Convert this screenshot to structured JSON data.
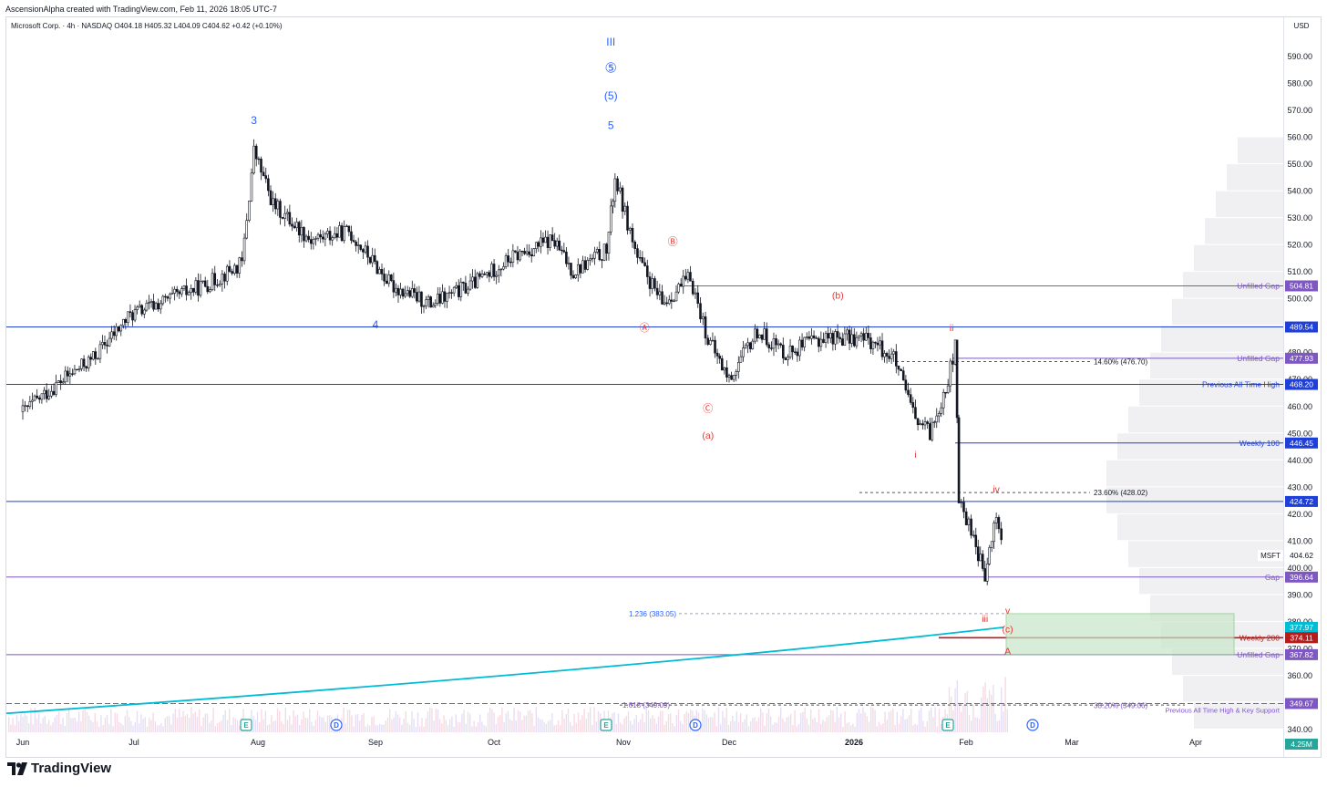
{
  "header": {
    "credit": "AscensionAlpha created with TradingView.com, Feb 11, 2026 18:05 UTC-7",
    "symbol_line": "Microsoft Corp. · 4h · NASDAQ  O404.18  H405.32  L404.09  C404.62  +0.42 (+0.10%)",
    "currency": "USD",
    "brand": "TradingView"
  },
  "chart_data": {
    "type": "candlestick",
    "symbol": "MSFT",
    "timeframe": "4h",
    "ylim": [
      340,
      598
    ],
    "y_ticks": [
      340,
      350,
      360,
      370,
      380,
      390,
      400,
      410,
      420,
      430,
      440,
      450,
      460,
      470,
      480,
      490,
      500,
      510,
      520,
      530,
      540,
      550,
      560,
      570,
      580,
      590
    ],
    "x_ticks": [
      "Jun",
      "Jul",
      "Aug",
      "Sep",
      "Oct",
      "Nov",
      "Dec",
      "2026",
      "Feb",
      "Mar",
      "Apr"
    ],
    "last_price": 404.62,
    "last_price_label": "MSFT",
    "ohlc_last": {
      "open": 404.18,
      "high": 405.32,
      "low": 404.09,
      "close": 404.62,
      "change": "+0.42 (+0.10%)"
    },
    "price_path": [
      [
        "2025-06-01",
        458
      ],
      [
        "2025-06-10",
        468
      ],
      [
        "2025-06-20",
        478
      ],
      [
        "2025-06-30",
        494
      ],
      [
        "2025-07-10",
        500
      ],
      [
        "2025-07-20",
        506
      ],
      [
        "2025-07-28",
        513
      ],
      [
        "2025-07-31",
        555
      ],
      [
        "2025-08-05",
        535
      ],
      [
        "2025-08-15",
        522
      ],
      [
        "2025-08-25",
        525
      ],
      [
        "2025-09-05",
        505
      ],
      [
        "2025-09-15",
        498
      ],
      [
        "2025-09-25",
        505
      ],
      [
        "2025-10-05",
        515
      ],
      [
        "2025-10-15",
        522
      ],
      [
        "2025-10-20",
        510
      ],
      [
        "2025-10-28",
        518
      ],
      [
        "2025-10-30",
        545
      ],
      [
        "2025-11-05",
        515
      ],
      [
        "2025-11-12",
        498
      ],
      [
        "2025-11-20",
        508
      ],
      [
        "2025-11-25",
        485
      ],
      [
        "2025-12-01",
        470
      ],
      [
        "2025-12-08",
        488
      ],
      [
        "2025-12-15",
        480
      ],
      [
        "2025-12-25",
        486
      ],
      [
        "2026-01-05",
        485
      ],
      [
        "2026-01-12",
        478
      ],
      [
        "2026-01-18",
        455
      ],
      [
        "2026-01-22",
        450
      ],
      [
        "2026-01-27",
        470
      ],
      [
        "2026-01-29",
        482
      ],
      [
        "2026-01-30",
        425
      ],
      [
        "2026-02-03",
        412
      ],
      [
        "2026-02-06",
        396
      ],
      [
        "2026-02-09",
        420
      ],
      [
        "2026-02-11",
        404.62
      ]
    ],
    "moving_average": {
      "name": "Weekly 200",
      "from": [
        "2025-06-01",
        346
      ],
      "to": [
        "2026-02-11",
        377.97
      ]
    },
    "horizontal_levels": [
      {
        "label": "Unfilled Gap",
        "value": 504.81,
        "color": "#7e57c2"
      },
      {
        "label": "",
        "value": 489.54,
        "color": "#1e3fd8"
      },
      {
        "label": "Unfilled Gap",
        "value": 477.93,
        "color": "#7e57c2"
      },
      {
        "label": "Previous All Time High",
        "value": 468.2,
        "color": "#1e3fd8"
      },
      {
        "label": "Weekly 100",
        "value": 446.45,
        "color": "#1e3fd8"
      },
      {
        "label": "",
        "value": 424.72,
        "color": "#1e3fd8"
      },
      {
        "label": "Gap",
        "value": 396.64,
        "color": "#7e57c2"
      },
      {
        "label": "",
        "value": 377.97,
        "color": "#00bcd4"
      },
      {
        "label": "Weekly 200",
        "value": 374.11,
        "color": "#b71c1c"
      },
      {
        "label": "Unfilled Gap",
        "value": 367.82,
        "color": "#7e57c2"
      },
      {
        "label": "Previous All Time High & Key Support",
        "value": 349.67,
        "color": "#7e57c2"
      }
    ],
    "price_axis_labels": [
      {
        "text": "504.81",
        "color": "#7e57c2"
      },
      {
        "text": "489.54",
        "color": "#1e3fd8"
      },
      {
        "text": "477.93",
        "color": "#7e57c2"
      },
      {
        "text": "468.20",
        "color": "#1e3fd8"
      },
      {
        "text": "446.45",
        "color": "#1e3fd8"
      },
      {
        "text": "424.72",
        "color": "#1e3fd8"
      },
      {
        "text": "404.62",
        "color": "#ffffff"
      },
      {
        "text": "396.64",
        "color": "#7e57c2"
      },
      {
        "text": "377.97",
        "color": "#00bcd4"
      },
      {
        "text": "374.11",
        "color": "#b71c1c"
      },
      {
        "text": "367.82",
        "color": "#7e57c2"
      },
      {
        "text": "349.67",
        "color": "#7e57c2"
      },
      {
        "text": "4.25M",
        "color": "#26a69a"
      }
    ],
    "fib_levels": [
      {
        "text": "14.60% (476.70)",
        "value": 476.7
      },
      {
        "text": "23.60% (428.02)",
        "value": 428.02
      },
      {
        "text": "1.236 (383.05)",
        "value": 383.05
      },
      {
        "text": "1.618 (349.09)",
        "value": 349.09
      },
      {
        "text": "38.20% (349.06)",
        "value": 349.06
      }
    ],
    "wave_labels_blue": [
      {
        "text": "3",
        "date": "2025-07-31",
        "price": 565
      },
      {
        "text": "4",
        "date": "2025-09-01",
        "price": 489
      },
      {
        "text": "III",
        "date": "2025-10-29",
        "price": 594
      },
      {
        "text": "⑤",
        "date": "2025-10-29",
        "price": 584
      },
      {
        "text": "(5)",
        "date": "2025-10-29",
        "price": 574
      },
      {
        "text": "5",
        "date": "2025-10-29",
        "price": 563
      }
    ],
    "wave_labels_red": [
      {
        "text": "Ⓑ",
        "date": "2025-11-15",
        "price": 520
      },
      {
        "text": "Ⓐ",
        "date": "2025-11-07",
        "price": 488
      },
      {
        "text": "Ⓒ",
        "date": "2025-11-25",
        "price": 458
      },
      {
        "text": "(a)",
        "date": "2025-11-25",
        "price": 448
      },
      {
        "text": "(b)",
        "date": "2025-12-28",
        "price": 500
      },
      {
        "text": "ii",
        "date": "2026-01-28",
        "price": 488
      },
      {
        "text": "i",
        "date": "2026-01-18",
        "price": 441
      },
      {
        "text": "iv",
        "date": "2026-02-09",
        "price": 428
      },
      {
        "text": "iii",
        "date": "2026-02-06",
        "price": 380
      },
      {
        "text": "v",
        "date": "2026-02-12",
        "price": 383
      },
      {
        "text": "(c)",
        "date": "2026-02-12",
        "price": 376
      },
      {
        "text": "A",
        "date": "2026-02-12",
        "price": 368
      }
    ],
    "target_zone": {
      "from_price": 367.82,
      "to_price": 383.05,
      "color": "#c8e6c9"
    },
    "event_markers": [
      "E",
      "D",
      "E",
      "D",
      "E",
      "D"
    ],
    "last_volume": "4.25M"
  },
  "colors": {
    "blue_level": "#1e3fd8",
    "purple_level": "#7e57c2",
    "ma": "#00bcd4",
    "red": "#b71c1c",
    "wave_red": "#e53935",
    "wave_blue": "#2962ff"
  }
}
